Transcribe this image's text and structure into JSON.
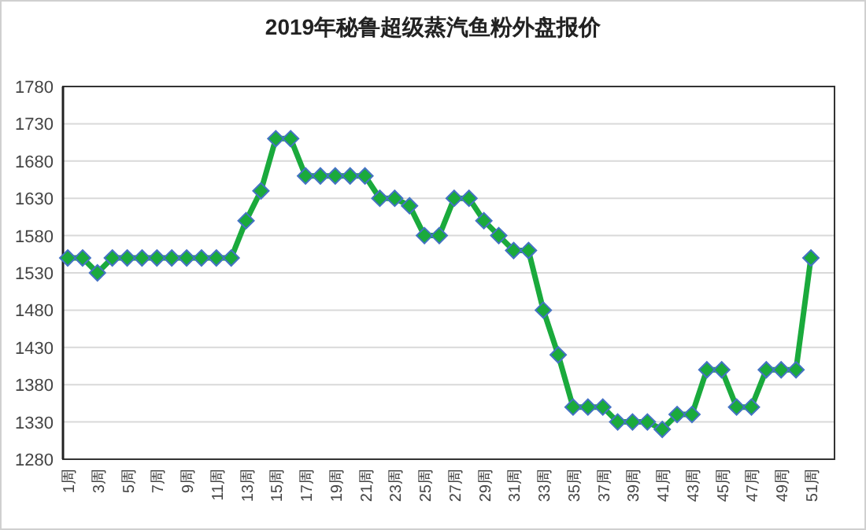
{
  "chart_data": {
    "type": "line",
    "title": "2019年秘鲁超级蒸汽鱼粉外盘报价",
    "categories": [
      "1周",
      null,
      "3周",
      null,
      "5周",
      null,
      "7周",
      null,
      "9周",
      null,
      "11周",
      null,
      "13周",
      null,
      "15周",
      null,
      "17周",
      null,
      "19周",
      null,
      "21周",
      null,
      "23周",
      null,
      "25周",
      null,
      "27周",
      null,
      "29周",
      null,
      "31周",
      null,
      "33周",
      null,
      "35周",
      null,
      "37周",
      null,
      "39周",
      null,
      "41周",
      null,
      "43周",
      null,
      "45周",
      null,
      "47周",
      null,
      "49周",
      null,
      "51周"
    ],
    "series": [
      {
        "color": "#1aaa3c",
        "values": [
          1550,
          1550,
          1530,
          1550,
          1550,
          1550,
          1550,
          1550,
          1550,
          1550,
          1550,
          1550,
          1600,
          1640,
          1710,
          1710,
          1660,
          1660,
          1660,
          1660,
          1660,
          1630,
          1630,
          1620,
          1580,
          1580,
          1630,
          1630,
          1600,
          1580,
          1560,
          1560,
          1480,
          1420,
          1350,
          1350,
          1350,
          1330,
          1330,
          1330,
          1320,
          1340,
          1340,
          1400,
          1400,
          1350,
          1350,
          1400,
          1400,
          1400,
          1550
        ]
      }
    ],
    "ylim": [
      1280,
      1780
    ],
    "yticks": [
      1280,
      1330,
      1380,
      1430,
      1480,
      1530,
      1580,
      1630,
      1680,
      1730,
      1780
    ],
    "grid": "y",
    "marker": "diamond",
    "line_style": "solid"
  }
}
